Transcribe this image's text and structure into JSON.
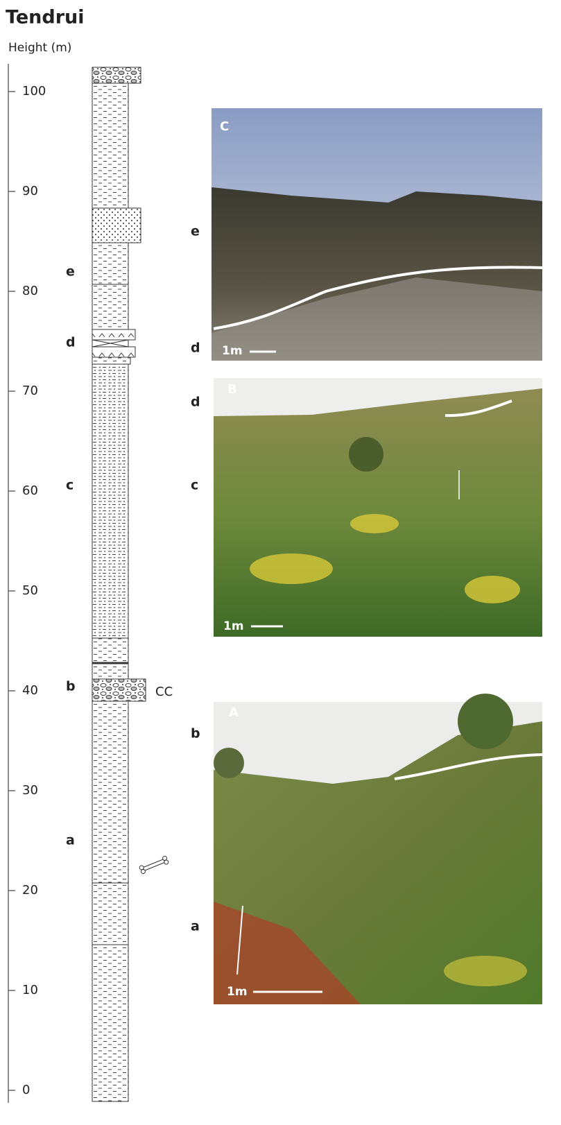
{
  "header": {
    "title": "Tendrui",
    "axis_label": "Height (m)"
  },
  "axis": {
    "ylim": [
      0,
      100
    ],
    "yticks": [
      0,
      10,
      20,
      30,
      40,
      50,
      60,
      70,
      80,
      90,
      100
    ]
  },
  "column": {
    "units": [
      "a",
      "b",
      "c",
      "d",
      "e"
    ],
    "annotation": "CC"
  },
  "photos": [
    {
      "label": "C",
      "top_unit": "e",
      "bottom_unit": "d",
      "scale_bar": "1m"
    },
    {
      "label": "B",
      "top_unit": "d",
      "bottom_unit": "c",
      "scale_bar": "1m"
    },
    {
      "label": "A",
      "top_unit": "b",
      "bottom_unit": "a",
      "scale_bar": "1m"
    }
  ]
}
